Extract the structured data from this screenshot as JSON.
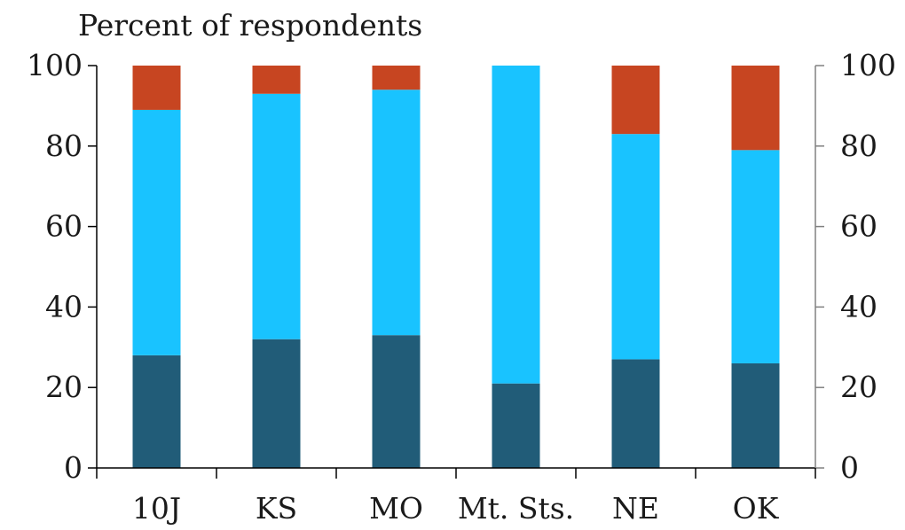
{
  "chart_data": {
    "type": "bar",
    "stacked": true,
    "ylabel": "Percent of respondents",
    "ylim": [
      0,
      100
    ],
    "yticks": [
      0,
      20,
      40,
      60,
      80,
      100
    ],
    "right_axis": true,
    "grid": false,
    "categories": [
      "10J",
      "KS",
      "MO",
      "Mt. Sts.",
      "NE",
      "OK"
    ],
    "series": [
      {
        "color": "#215c78",
        "values": [
          28,
          32,
          33,
          21,
          27,
          26
        ]
      },
      {
        "color": "#19c3ff",
        "values": [
          61,
          61,
          61,
          79,
          56,
          53
        ]
      },
      {
        "color": "#c74521",
        "values": [
          11,
          7,
          6,
          0,
          17,
          21
        ]
      }
    ]
  }
}
